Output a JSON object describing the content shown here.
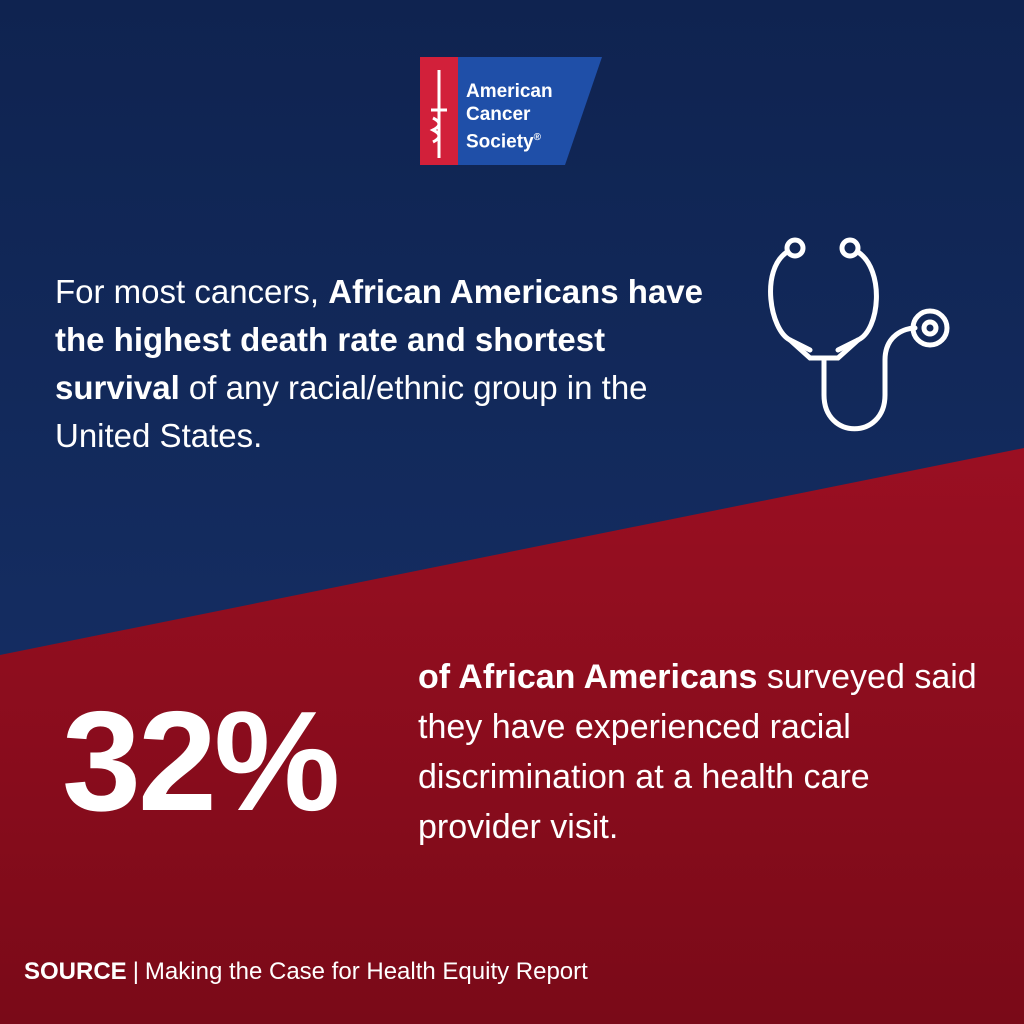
{
  "logo": {
    "lines": [
      "American",
      "Cancer",
      "Society"
    ],
    "mark": "®"
  },
  "statement": {
    "segments": [
      {
        "text": "For most cancers, ",
        "bold": false
      },
      {
        "text": "African Americans have the highest death rate and shortest survival",
        "bold": true
      },
      {
        "text": " of any racial/ethnic group in the United States.",
        "bold": false
      }
    ]
  },
  "stat": {
    "figure": "32%",
    "segments": [
      {
        "text": "of African Americans",
        "bold": true
      },
      {
        "text": " surveyed said they have experienced racial discrimination at a health care provider visit.",
        "bold": false
      }
    ]
  },
  "source": {
    "label": "SOURCE",
    "separator": "|",
    "text": "Making the Case for Health Equity Report"
  }
}
